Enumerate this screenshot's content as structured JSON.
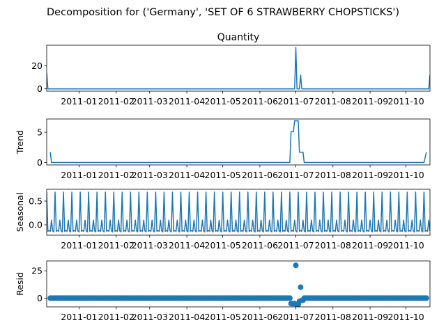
{
  "title": "Decomposition for ('Germany', 'SET OF 6 STRAWBERRY CHOPSTICKS')",
  "colors": {
    "line": "#1f77b4",
    "axis": "#000000",
    "background": "#ffffff"
  },
  "chart_data": [
    {
      "type": "line",
      "title": "Quantity",
      "ylabel": "",
      "x_start": "2010-12-05",
      "x_end": "2011-10-21",
      "ylim": [
        -2,
        38
      ],
      "yticks": [
        0,
        20
      ],
      "grid": false,
      "xticks": [
        "2011-01",
        "2011-02",
        "2011-03",
        "2011-04",
        "2011-05",
        "2011-06",
        "2011-07",
        "2011-08",
        "2011-09",
        "2011-10"
      ],
      "baseline": 0,
      "points": [
        {
          "x": "2010-12-05",
          "y": 14
        },
        {
          "x": "2010-12-06",
          "y": 0
        },
        {
          "x": "2011-06-30",
          "y": 0
        },
        {
          "x": "2011-07-01",
          "y": 36
        },
        {
          "x": "2011-07-02",
          "y": 0
        },
        {
          "x": "2011-07-04",
          "y": 0
        },
        {
          "x": "2011-07-05",
          "y": 12
        },
        {
          "x": "2011-07-06",
          "y": 0
        },
        {
          "x": "2011-10-20",
          "y": 0
        },
        {
          "x": "2011-10-21",
          "y": 12
        }
      ]
    },
    {
      "type": "line",
      "title": "",
      "ylabel": "Trend",
      "x_start": "2010-12-05",
      "x_end": "2011-10-21",
      "ylim": [
        -0.4,
        7.2
      ],
      "yticks": [
        0,
        5
      ],
      "grid": false,
      "xticks": [
        "2011-01",
        "2011-02",
        "2011-03",
        "2011-04",
        "2011-05",
        "2011-06",
        "2011-07",
        "2011-08",
        "2011-09",
        "2011-10"
      ],
      "points": [
        {
          "x": "2010-12-08",
          "y": 1.7
        },
        {
          "x": "2010-12-09",
          "y": 0
        },
        {
          "x": "2011-06-26",
          "y": 0
        },
        {
          "x": "2011-06-27",
          "y": 5.1
        },
        {
          "x": "2011-06-29",
          "y": 5.1
        },
        {
          "x": "2011-06-30",
          "y": 6.9
        },
        {
          "x": "2011-07-03",
          "y": 6.9
        },
        {
          "x": "2011-07-04",
          "y": 1.7
        },
        {
          "x": "2011-07-07",
          "y": 1.7
        },
        {
          "x": "2011-07-08",
          "y": 0
        },
        {
          "x": "2011-10-16",
          "y": 0
        },
        {
          "x": "2011-10-18",
          "y": 1.7
        }
      ]
    },
    {
      "type": "line",
      "title": "",
      "ylabel": "Seasonal",
      "x_start": "2010-12-05",
      "x_end": "2011-10-21",
      "ylim": [
        -0.22,
        0.75
      ],
      "yticks": [
        0.0,
        0.5
      ],
      "ytick_labels": [
        "0.0",
        "0.5"
      ],
      "grid": false,
      "xticks": [
        "2011-01",
        "2011-02",
        "2011-03",
        "2011-04",
        "2011-05",
        "2011-06",
        "2011-07",
        "2011-08",
        "2011-09",
        "2011-10"
      ],
      "period_days": 7,
      "pattern": [
        0.69,
        -0.14,
        -0.12,
        -0.14,
        0.1,
        -0.13,
        -0.15
      ]
    },
    {
      "type": "scatter",
      "title": "",
      "ylabel": "Resid",
      "x_start": "2010-12-05",
      "x_end": "2011-10-21",
      "ylim": [
        -8,
        34
      ],
      "yticks": [
        0,
        25
      ],
      "grid": false,
      "xticks": [
        "2011-01",
        "2011-02",
        "2011-03",
        "2011-04",
        "2011-05",
        "2011-06",
        "2011-07",
        "2011-08",
        "2011-09",
        "2011-10"
      ],
      "first_point": "2010-12-08",
      "last_point": "2011-10-18",
      "baseline": 0,
      "outliers": [
        {
          "x": "2011-06-27",
          "y": -5
        },
        {
          "x": "2011-06-28",
          "y": -5
        },
        {
          "x": "2011-06-29",
          "y": -5
        },
        {
          "x": "2011-06-30",
          "y": -5
        },
        {
          "x": "2011-07-01",
          "y": 30
        },
        {
          "x": "2011-07-02",
          "y": -6
        },
        {
          "x": "2011-07-03",
          "y": -6
        },
        {
          "x": "2011-07-04",
          "y": -3
        },
        {
          "x": "2011-07-05",
          "y": 10
        },
        {
          "x": "2011-07-06",
          "y": -2
        },
        {
          "x": "2011-07-07",
          "y": -2
        }
      ]
    }
  ]
}
